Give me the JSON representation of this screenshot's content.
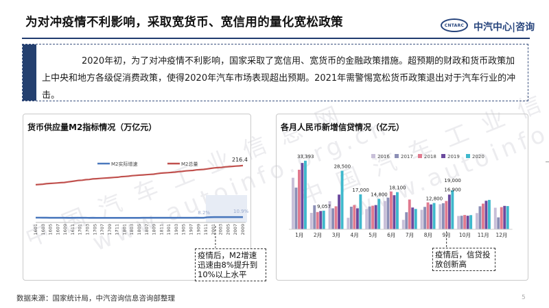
{
  "header": {
    "title": "为对冲疫情不利影响，采取宽货币、宽信用的量化宽松政策",
    "logo_text": "CNTARC",
    "brand": "中汽中心|咨询"
  },
  "intro": {
    "text": "2020年初，为了对冲疫情不利影响，国家采取了宽信用、宽货币的金融政策措施。超预期的财政和货币政策加上中央和地方各级促消费政策，使得2020年汽车市场表现超出预期。2021年需警惕宽松货币政策退出对于汽车行业的冲击。"
  },
  "watermark": {
    "line1": "中 国 汽 车 工 业 信 息 网",
    "line2": "www.autoinfo.org.cn"
  },
  "colors": {
    "m2_growth": "#4a78bd",
    "m2_total": "#c0504d",
    "s2016": "#c8bfd8",
    "s2017": "#8c8fb6",
    "s2018": "#e07a8f",
    "s2019": "#6b4a9e",
    "s2020": "#3fb8cc"
  },
  "chart_data": [
    {
      "type": "line",
      "title": "货币供应量M2指标情况（万亿元）",
      "series": [
        {
          "name": "M2实际增速",
          "values": [
            8.6,
            8.6,
            8.4,
            8.5,
            8.3,
            8.3,
            8.2,
            8.3,
            8.2,
            8.0,
            7.8,
            8.3,
            8.2,
            8.1,
            8.1,
            8.0,
            8.1,
            8.0,
            8.0,
            8.0,
            7.9,
            7.9,
            7.8,
            7.8,
            7.9,
            7.9,
            7.9,
            7.9,
            8.0,
            8.0,
            8.1,
            8.1,
            8.2,
            8.2,
            8.2,
            8.2,
            8.2,
            8.2,
            8.1,
            8.2,
            8.1,
            8.2,
            8.1,
            8.2,
            8.2,
            8.4,
            8.2,
            8.2,
            10.1,
            10.6,
            10.9,
            10.9,
            10.9,
            10.9,
            10.9,
            10.9,
            10.9,
            10.9,
            10.9
          ]
        },
        {
          "name": "M2总量",
          "values": [
            140,
            141,
            142,
            144,
            145,
            146,
            147,
            148,
            149,
            151,
            153,
            155,
            157,
            158,
            160,
            161,
            163,
            164,
            165,
            166,
            167,
            168,
            169,
            170,
            172,
            173,
            174,
            176,
            177,
            178,
            179,
            180,
            181,
            182,
            184,
            186,
            187,
            188,
            189,
            190,
            192,
            193,
            195,
            196,
            197,
            199,
            200,
            201,
            203,
            205,
            207,
            208,
            209,
            211,
            212,
            213,
            214,
            215,
            216.4
          ]
        }
      ],
      "x_labels": [
        "1601",
        "1603",
        "1605",
        "1607",
        "1609",
        "1611",
        "1701",
        "1703",
        "1705",
        "1707",
        "1709",
        "1711",
        "1801",
        "1803",
        "1805",
        "1807",
        "1809",
        "1811",
        "1901",
        "1903",
        "1905",
        "1907",
        "1909",
        "1911",
        "2001",
        "2003",
        "2005",
        "2007",
        "2009"
      ],
      "annotations": {
        "m2_total_last": "216.4",
        "growth_pre": "8.2%",
        "growth_post": "10.9%"
      },
      "callout": "疫情后，M2增速迅速由8%提升到10%以上水平"
    },
    {
      "type": "bar",
      "title": "各月人民币新增信贷情况（亿元）",
      "categories": [
        "1月",
        "2月",
        "3月",
        "4月",
        "5月",
        "6月",
        "7月",
        "8月",
        "9月",
        "10月",
        "11月",
        "12月"
      ],
      "series": [
        {
          "name": "2016",
          "values": [
            25100,
            8000,
            13700,
            5600,
            9850,
            13800,
            4600,
            9500,
            12200,
            6500,
            7900,
            10500
          ]
        },
        {
          "name": "2017",
          "values": [
            20300,
            11700,
            10200,
            11000,
            11100,
            15400,
            8300,
            10900,
            12700,
            6600,
            11200,
            5800
          ]
        },
        {
          "name": "2018",
          "values": [
            29000,
            8400,
            11200,
            11800,
            11500,
            18400,
            14500,
            13100,
            13800,
            6970,
            12500,
            10800
          ]
        },
        {
          "name": "2019",
          "values": [
            32300,
            8900,
            16900,
            10200,
            11800,
            16600,
            10600,
            12100,
            16900,
            6600,
            13900,
            11400
          ]
        },
        {
          "name": "2020",
          "values": [
            33393,
            9057,
            28500,
            17000,
            14800,
            18100,
            9900,
            12800,
            19000,
            6898,
            14300,
            11300
          ]
        }
      ],
      "data_labels": {
        "jan": "33,393",
        "feb": "9,057",
        "mar": "28,500",
        "apr": "17,000",
        "may": "14,800",
        "jun": "18,100",
        "aug": "12,800",
        "sep_a": "19,000",
        "sep_b": "16,900"
      },
      "callout": "疫情后，信贷投放创新高"
    }
  ],
  "footer": {
    "source": "数据来源：国家统计局，中汽咨询信息咨询部整理",
    "page": "5"
  }
}
